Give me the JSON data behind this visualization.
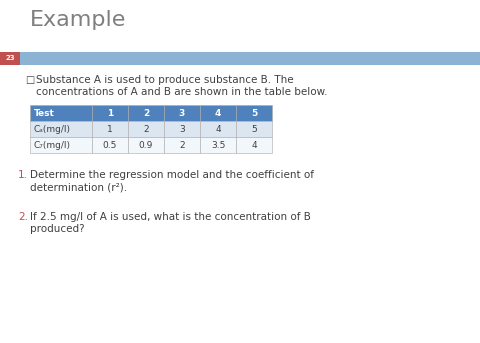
{
  "title": "Example",
  "title_color": "#7f7f7f",
  "title_fontsize": 16,
  "slide_number": "23",
  "header_bar_color": "#8db3d4",
  "header_bar_left_color": "#c0504d",
  "bullet_text_line1": "Substance A is used to produce substance B. The",
  "bullet_text_line2": "concentrations of A and B are shown in the table below.",
  "bullet_color": "#404040",
  "bullet_fontsize": 7.5,
  "table_header_row": [
    "Test",
    "1",
    "2",
    "3",
    "4",
    "5"
  ],
  "table_row1_label": "Cₐ(mg/l)",
  "table_row2_label": "C₇(mg/l)",
  "table_row1_values": [
    "1",
    "2",
    "3",
    "4",
    "5"
  ],
  "table_row2_values": [
    "0.5",
    "0.9",
    "2",
    "3.5",
    "4"
  ],
  "table_header_bg": "#4f81bd",
  "table_header_color": "#ffffff",
  "table_row_bg_odd": "#dce6f1",
  "table_row_bg_even": "#f2f7fc",
  "table_text_color": "#404040",
  "table_fontsize": 6.5,
  "item1_number": "1.",
  "item1_text_line1": "Determine the regression model and the coefficient of",
  "item1_text_line2": "determination (r²).",
  "item2_number": "2.",
  "item2_text_line1": "If 2.5 mg/l of A is used, what is the concentration of B",
  "item2_text_line2": "produced?",
  "numbered_color": "#c0504d",
  "numbered_fontsize": 7.5,
  "body_text_color": "#404040",
  "background_color": "#ffffff",
  "slide_num_color": "#ffffff",
  "slide_num_fontsize": 5
}
